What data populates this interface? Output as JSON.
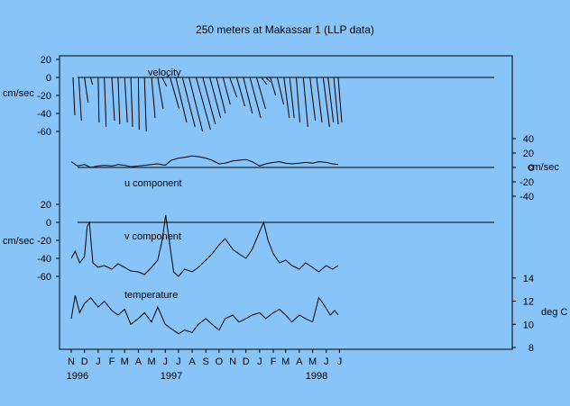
{
  "chart_data": {
    "type": "line",
    "title": "250 meters at Makassar 1 (LLP data)",
    "background": "#88c4f8",
    "line_color": "#000000",
    "x_axis": {
      "range": [
        "1995-11-01",
        "1998-07-01"
      ],
      "month_labels": [
        "N",
        "D",
        "J",
        "F",
        "M",
        "A",
        "M",
        "J",
        "J",
        "A",
        "S",
        "O",
        "N",
        "D",
        "J",
        "F",
        "M",
        "A",
        "M",
        "J",
        "J"
      ],
      "month_dates": [
        "1995-11-01",
        "1995-12-01",
        "1996-01-01",
        "1996-02-01",
        "1996-03-01",
        "1996-04-01",
        "1996-05-01",
        "1996-06-01",
        "1996-07-01",
        "1996-08-01",
        "1996-09-01",
        "1996-10-01",
        "1996-11-01",
        "1996-12-01",
        "1997-01-01",
        "1997-02-01",
        "1997-03-01",
        "1997-04-01",
        "1997-05-01",
        "1997-06-01",
        "1997-07-01"
      ],
      "year_labels": [
        {
          "text": "1996",
          "date": "1995-11-15"
        },
        {
          "text": "1997",
          "date": "1996-06-15"
        },
        {
          "text": "1998",
          "date": "1997-05-10"
        }
      ]
    },
    "panels": [
      {
        "key": "velocity",
        "name": "velocity",
        "kind": "stick",
        "ylabel": "cm/sec",
        "ylim": [
          -60,
          20
        ],
        "yticks": [
          20,
          0,
          -20,
          -40,
          -60
        ],
        "tick_labels": [
          "20",
          "0",
          "-20",
          "-40",
          "-60"
        ],
        "axis_side": "left",
        "points": [
          {
            "date": "1995-11-05",
            "u": 2,
            "v": -42
          },
          {
            "date": "1995-11-18",
            "u": 3,
            "v": -48
          },
          {
            "date": "1995-12-01",
            "u": 4,
            "v": -28
          },
          {
            "date": "1995-12-15",
            "u": 2,
            "v": -8
          },
          {
            "date": "1996-01-01",
            "u": 1,
            "v": -50
          },
          {
            "date": "1996-01-15",
            "u": 2,
            "v": -55
          },
          {
            "date": "1996-02-01",
            "u": 3,
            "v": -48
          },
          {
            "date": "1996-02-15",
            "u": 2,
            "v": -52
          },
          {
            "date": "1996-03-01",
            "u": 3,
            "v": -50
          },
          {
            "date": "1996-03-15",
            "u": 2,
            "v": -55
          },
          {
            "date": "1996-04-01",
            "u": 1,
            "v": -58
          },
          {
            "date": "1996-04-15",
            "u": 2,
            "v": -60
          },
          {
            "date": "1996-05-01",
            "u": 4,
            "v": -45
          },
          {
            "date": "1996-05-15",
            "u": 6,
            "v": -35
          },
          {
            "date": "1996-05-25",
            "u": 5,
            "v": -10
          },
          {
            "date": "1996-06-02",
            "u": 4,
            "v": 2
          },
          {
            "date": "1996-06-12",
            "u": 10,
            "v": -35
          },
          {
            "date": "1996-06-25",
            "u": 12,
            "v": -50
          },
          {
            "date": "1996-07-10",
            "u": 14,
            "v": -55
          },
          {
            "date": "1996-07-25",
            "u": 15,
            "v": -60
          },
          {
            "date": "1996-08-10",
            "u": 16,
            "v": -58
          },
          {
            "date": "1996-08-25",
            "u": 14,
            "v": -52
          },
          {
            "date": "1996-09-10",
            "u": 12,
            "v": -45
          },
          {
            "date": "1996-09-25",
            "u": 10,
            "v": -40
          },
          {
            "date": "1996-10-10",
            "u": 8,
            "v": -30
          },
          {
            "date": "1996-10-25",
            "u": 8,
            "v": -22
          },
          {
            "date": "1996-11-10",
            "u": 9,
            "v": -32
          },
          {
            "date": "1996-11-25",
            "u": 10,
            "v": -40
          },
          {
            "date": "1996-12-10",
            "u": 12,
            "v": -45
          },
          {
            "date": "1996-12-25",
            "u": 10,
            "v": -35
          },
          {
            "date": "1997-01-05",
            "u": 6,
            "v": -8
          },
          {
            "date": "1997-01-15",
            "u": 5,
            "v": -5
          },
          {
            "date": "1997-01-25",
            "u": 6,
            "v": -20
          },
          {
            "date": "1997-02-10",
            "u": 7,
            "v": -30
          },
          {
            "date": "1997-02-25",
            "u": 6,
            "v": -45
          },
          {
            "date": "1997-03-10",
            "u": 5,
            "v": -45
          },
          {
            "date": "1997-03-25",
            "u": 4,
            "v": -50
          },
          {
            "date": "1997-04-10",
            "u": 5,
            "v": -55
          },
          {
            "date": "1997-04-25",
            "u": 6,
            "v": -48
          },
          {
            "date": "1997-05-10",
            "u": 6,
            "v": -50
          },
          {
            "date": "1997-05-25",
            "u": 7,
            "v": -55
          },
          {
            "date": "1997-06-05",
            "u": 6,
            "v": -50
          },
          {
            "date": "1997-06-18",
            "u": 5,
            "v": -52
          },
          {
            "date": "1997-06-28",
            "u": 4,
            "v": -50
          }
        ]
      },
      {
        "key": "u",
        "name": "u component",
        "kind": "line",
        "ylabel": "cm/sec",
        "ylim": [
          -50,
          50
        ],
        "yticks": [
          40,
          20,
          0,
          -20,
          -40
        ],
        "tick_labels": [
          "40",
          "20",
          "0",
          "-20",
          "-40"
        ],
        "axis_side": "right",
        "zero_line": true,
        "points": [
          {
            "date": "1995-11-01",
            "value": 8
          },
          {
            "date": "1995-11-15",
            "value": 2
          },
          {
            "date": "1995-12-01",
            "value": 4
          },
          {
            "date": "1995-12-15",
            "value": 0
          },
          {
            "date": "1996-01-01",
            "value": 2
          },
          {
            "date": "1996-01-15",
            "value": 3
          },
          {
            "date": "1996-02-01",
            "value": 2
          },
          {
            "date": "1996-02-15",
            "value": 4
          },
          {
            "date": "1996-03-01",
            "value": 3
          },
          {
            "date": "1996-03-15",
            "value": 1
          },
          {
            "date": "1996-04-01",
            "value": 2
          },
          {
            "date": "1996-04-15",
            "value": 3
          },
          {
            "date": "1996-05-01",
            "value": 4
          },
          {
            "date": "1996-05-15",
            "value": 5
          },
          {
            "date": "1996-06-01",
            "value": 3
          },
          {
            "date": "1996-06-15",
            "value": 10
          },
          {
            "date": "1996-07-01",
            "value": 13
          },
          {
            "date": "1996-07-15",
            "value": 14
          },
          {
            "date": "1996-08-01",
            "value": 16
          },
          {
            "date": "1996-08-15",
            "value": 15
          },
          {
            "date": "1996-09-01",
            "value": 13
          },
          {
            "date": "1996-09-15",
            "value": 10
          },
          {
            "date": "1996-10-01",
            "value": 5
          },
          {
            "date": "1996-10-15",
            "value": 6
          },
          {
            "date": "1996-11-01",
            "value": 9
          },
          {
            "date": "1996-11-15",
            "value": 10
          },
          {
            "date": "1996-12-01",
            "value": 11
          },
          {
            "date": "1996-12-15",
            "value": 8
          },
          {
            "date": "1997-01-01",
            "value": 2
          },
          {
            "date": "1997-01-15",
            "value": 5
          },
          {
            "date": "1997-02-01",
            "value": 7
          },
          {
            "date": "1997-02-15",
            "value": 8
          },
          {
            "date": "1997-03-01",
            "value": 6
          },
          {
            "date": "1997-03-15",
            "value": 5
          },
          {
            "date": "1997-04-01",
            "value": 6
          },
          {
            "date": "1997-04-15",
            "value": 7
          },
          {
            "date": "1997-05-01",
            "value": 6
          },
          {
            "date": "1997-05-15",
            "value": 8
          },
          {
            "date": "1997-06-01",
            "value": 7
          },
          {
            "date": "1997-06-15",
            "value": 5
          },
          {
            "date": "1997-06-28",
            "value": 4
          }
        ]
      },
      {
        "key": "v",
        "name": "v component",
        "kind": "line",
        "ylabel": "cm/sec",
        "ylim": [
          -60,
          20
        ],
        "yticks": [
          20,
          0,
          -20,
          -40,
          -60
        ],
        "tick_labels": [
          "20",
          "0",
          "-20",
          "-40",
          "-60"
        ],
        "axis_side": "left",
        "zero_line": true,
        "points": [
          {
            "date": "1995-11-01",
            "value": -40
          },
          {
            "date": "1995-11-10",
            "value": -32
          },
          {
            "date": "1995-11-20",
            "value": -45
          },
          {
            "date": "1995-12-01",
            "value": -38
          },
          {
            "date": "1995-12-07",
            "value": -5
          },
          {
            "date": "1995-12-12",
            "value": 0
          },
          {
            "date": "1995-12-20",
            "value": -45
          },
          {
            "date": "1996-01-01",
            "value": -50
          },
          {
            "date": "1996-01-15",
            "value": -48
          },
          {
            "date": "1996-02-01",
            "value": -52
          },
          {
            "date": "1996-02-15",
            "value": -46
          },
          {
            "date": "1996-03-01",
            "value": -50
          },
          {
            "date": "1996-03-15",
            "value": -54
          },
          {
            "date": "1996-04-01",
            "value": -55
          },
          {
            "date": "1996-04-15",
            "value": -58
          },
          {
            "date": "1996-05-01",
            "value": -50
          },
          {
            "date": "1996-05-15",
            "value": -42
          },
          {
            "date": "1996-05-25",
            "value": -20
          },
          {
            "date": "1996-06-02",
            "value": 8
          },
          {
            "date": "1996-06-10",
            "value": -20
          },
          {
            "date": "1996-06-20",
            "value": -55
          },
          {
            "date": "1996-07-01",
            "value": -60
          },
          {
            "date": "1996-07-15",
            "value": -52
          },
          {
            "date": "1996-08-01",
            "value": -55
          },
          {
            "date": "1996-08-15",
            "value": -50
          },
          {
            "date": "1996-09-01",
            "value": -42
          },
          {
            "date": "1996-09-15",
            "value": -35
          },
          {
            "date": "1996-10-01",
            "value": -25
          },
          {
            "date": "1996-10-15",
            "value": -18
          },
          {
            "date": "1996-11-01",
            "value": -30
          },
          {
            "date": "1996-11-15",
            "value": -35
          },
          {
            "date": "1996-12-01",
            "value": -40
          },
          {
            "date": "1996-12-15",
            "value": -30
          },
          {
            "date": "1997-01-01",
            "value": -10
          },
          {
            "date": "1997-01-10",
            "value": 0
          },
          {
            "date": "1997-01-20",
            "value": -20
          },
          {
            "date": "1997-02-01",
            "value": -35
          },
          {
            "date": "1997-02-15",
            "value": -45
          },
          {
            "date": "1997-03-01",
            "value": -42
          },
          {
            "date": "1997-03-15",
            "value": -48
          },
          {
            "date": "1997-04-01",
            "value": -52
          },
          {
            "date": "1997-04-15",
            "value": -45
          },
          {
            "date": "1997-05-01",
            "value": -50
          },
          {
            "date": "1997-05-15",
            "value": -55
          },
          {
            "date": "1997-06-01",
            "value": -48
          },
          {
            "date": "1997-06-15",
            "value": -52
          },
          {
            "date": "1997-06-28",
            "value": -48
          }
        ]
      },
      {
        "key": "t",
        "name": "temperature",
        "kind": "line",
        "ylabel": "deg C",
        "ylim": [
          8,
          15
        ],
        "yticks": [
          14,
          12,
          10,
          8
        ],
        "tick_labels": [
          "14",
          "12",
          "10",
          "8"
        ],
        "axis_side": "right",
        "points": [
          {
            "date": "1995-11-01",
            "value": 10.5
          },
          {
            "date": "1995-11-10",
            "value": 12.5
          },
          {
            "date": "1995-11-20",
            "value": 11.0
          },
          {
            "date": "1995-12-01",
            "value": 11.8
          },
          {
            "date": "1995-12-15",
            "value": 12.3
          },
          {
            "date": "1996-01-01",
            "value": 11.5
          },
          {
            "date": "1996-01-15",
            "value": 12.0
          },
          {
            "date": "1996-02-01",
            "value": 11.2
          },
          {
            "date": "1996-02-15",
            "value": 10.8
          },
          {
            "date": "1996-03-01",
            "value": 11.3
          },
          {
            "date": "1996-03-15",
            "value": 10.0
          },
          {
            "date": "1996-04-01",
            "value": 10.5
          },
          {
            "date": "1996-04-15",
            "value": 11.0
          },
          {
            "date": "1996-05-01",
            "value": 10.2
          },
          {
            "date": "1996-05-15",
            "value": 11.5
          },
          {
            "date": "1996-06-01",
            "value": 10.0
          },
          {
            "date": "1996-06-15",
            "value": 9.6
          },
          {
            "date": "1996-07-01",
            "value": 9.2
          },
          {
            "date": "1996-07-15",
            "value": 9.5
          },
          {
            "date": "1996-08-01",
            "value": 9.3
          },
          {
            "date": "1996-08-15",
            "value": 10.0
          },
          {
            "date": "1996-09-01",
            "value": 10.5
          },
          {
            "date": "1996-09-15",
            "value": 10.0
          },
          {
            "date": "1996-10-01",
            "value": 9.5
          },
          {
            "date": "1996-10-15",
            "value": 10.5
          },
          {
            "date": "1996-11-01",
            "value": 10.8
          },
          {
            "date": "1996-11-15",
            "value": 10.2
          },
          {
            "date": "1996-12-01",
            "value": 10.5
          },
          {
            "date": "1996-12-15",
            "value": 10.8
          },
          {
            "date": "1997-01-01",
            "value": 11.0
          },
          {
            "date": "1997-01-15",
            "value": 10.5
          },
          {
            "date": "1997-02-01",
            "value": 11.0
          },
          {
            "date": "1997-02-15",
            "value": 11.3
          },
          {
            "date": "1997-03-01",
            "value": 10.8
          },
          {
            "date": "1997-03-15",
            "value": 10.2
          },
          {
            "date": "1997-04-01",
            "value": 10.8
          },
          {
            "date": "1997-04-15",
            "value": 10.5
          },
          {
            "date": "1997-05-01",
            "value": 10.2
          },
          {
            "date": "1997-05-15",
            "value": 12.3
          },
          {
            "date": "1997-05-25",
            "value": 11.8
          },
          {
            "date": "1997-06-10",
            "value": 10.8
          },
          {
            "date": "1997-06-20",
            "value": 11.2
          },
          {
            "date": "1997-06-28",
            "value": 10.8
          }
        ]
      }
    ]
  }
}
